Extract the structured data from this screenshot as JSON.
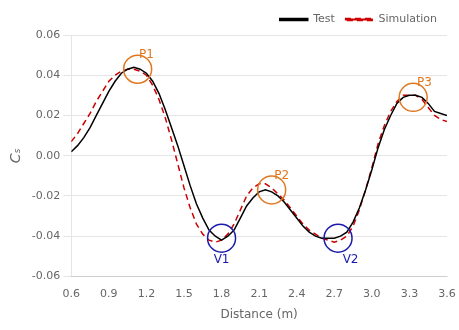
{
  "chart_data": {
    "type": "line",
    "xlabel": "Distance (m)",
    "ylabel": "Cₛ",
    "x": [
      0.6,
      0.65,
      0.7,
      0.75,
      0.8,
      0.85,
      0.9,
      0.95,
      1.0,
      1.05,
      1.1,
      1.15,
      1.2,
      1.25,
      1.3,
      1.35,
      1.4,
      1.45,
      1.5,
      1.55,
      1.6,
      1.65,
      1.7,
      1.75,
      1.8,
      1.85,
      1.9,
      1.95,
      2.0,
      2.05,
      2.1,
      2.15,
      2.2,
      2.25,
      2.3,
      2.35,
      2.4,
      2.45,
      2.5,
      2.55,
      2.6,
      2.65,
      2.7,
      2.75,
      2.8,
      2.85,
      2.9,
      2.95,
      3.0,
      3.05,
      3.1,
      3.15,
      3.2,
      3.25,
      3.3,
      3.35,
      3.4,
      3.45,
      3.5,
      3.55,
      3.6
    ],
    "series": [
      {
        "name": "Test",
        "color": "#000000",
        "line_style": "solid",
        "values": [
          0.002,
          0.005,
          0.009,
          0.014,
          0.02,
          0.026,
          0.032,
          0.037,
          0.041,
          0.043,
          0.044,
          0.043,
          0.041,
          0.037,
          0.031,
          0.023,
          0.014,
          0.005,
          -0.005,
          -0.015,
          -0.024,
          -0.031,
          -0.037,
          -0.04,
          -0.042,
          -0.04,
          -0.037,
          -0.031,
          -0.025,
          -0.021,
          -0.018,
          -0.017,
          -0.018,
          -0.02,
          -0.023,
          -0.027,
          -0.031,
          -0.035,
          -0.038,
          -0.04,
          -0.041,
          -0.041,
          -0.041,
          -0.04,
          -0.038,
          -0.033,
          -0.026,
          -0.017,
          -0.007,
          0.004,
          0.013,
          0.02,
          0.026,
          0.029,
          0.03,
          0.03,
          0.029,
          0.026,
          0.022,
          0.021,
          0.02
        ]
      },
      {
        "name": "Simulation",
        "color": "#cc0000",
        "line_style": "dashed",
        "values": [
          0.007,
          0.011,
          0.016,
          0.021,
          0.027,
          0.032,
          0.037,
          0.04,
          0.042,
          0.043,
          0.043,
          0.042,
          0.04,
          0.035,
          0.028,
          0.019,
          0.008,
          -0.004,
          -0.016,
          -0.026,
          -0.034,
          -0.039,
          -0.042,
          -0.043,
          -0.042,
          -0.039,
          -0.034,
          -0.027,
          -0.02,
          -0.016,
          -0.014,
          -0.014,
          -0.016,
          -0.019,
          -0.022,
          -0.026,
          -0.03,
          -0.034,
          -0.037,
          -0.039,
          -0.041,
          -0.042,
          -0.043,
          -0.042,
          -0.04,
          -0.035,
          -0.027,
          -0.017,
          -0.006,
          0.006,
          0.015,
          0.022,
          0.027,
          0.03,
          0.03,
          0.03,
          0.028,
          0.024,
          0.02,
          0.018,
          0.017
        ]
      }
    ],
    "xlim": [
      0.6,
      3.6
    ],
    "ylim": [
      -0.06,
      0.06
    ],
    "xticks": [
      0.6,
      0.9,
      1.2,
      1.5,
      1.8,
      2.1,
      2.4,
      2.7,
      {
        "value": 3.0,
        "label": "3.0"
      },
      3.3,
      3.6
    ],
    "yticks": [
      -0.06,
      -0.04,
      -0.02,
      {
        "value": 0,
        "label": "0.00"
      },
      0.02,
      0.04,
      0.06
    ],
    "grid": "y",
    "legend": "upper right",
    "annotations": [
      {
        "text": "P1",
        "x": 1.2,
        "y": 0.05,
        "color": "#e07820",
        "marker": "circle",
        "marker_x": 1.13,
        "marker_y": 0.043
      },
      {
        "text": "V1",
        "x": 1.8,
        "y": -0.052,
        "color": "#1a1aaa",
        "marker": "circle",
        "marker_x": 1.8,
        "marker_y": -0.041
      },
      {
        "text": "P2",
        "x": 2.28,
        "y": -0.01,
        "color": "#e07820",
        "marker": "circle",
        "marker_x": 2.2,
        "marker_y": -0.017
      },
      {
        "text": "V2",
        "x": 2.83,
        "y": -0.052,
        "color": "#1a1aaa",
        "marker": "circle",
        "marker_x": 2.73,
        "marker_y": -0.041
      },
      {
        "text": "P3",
        "x": 3.42,
        "y": 0.036,
        "color": "#e07820",
        "marker": "circle",
        "marker_x": 3.33,
        "marker_y": 0.029
      }
    ]
  }
}
